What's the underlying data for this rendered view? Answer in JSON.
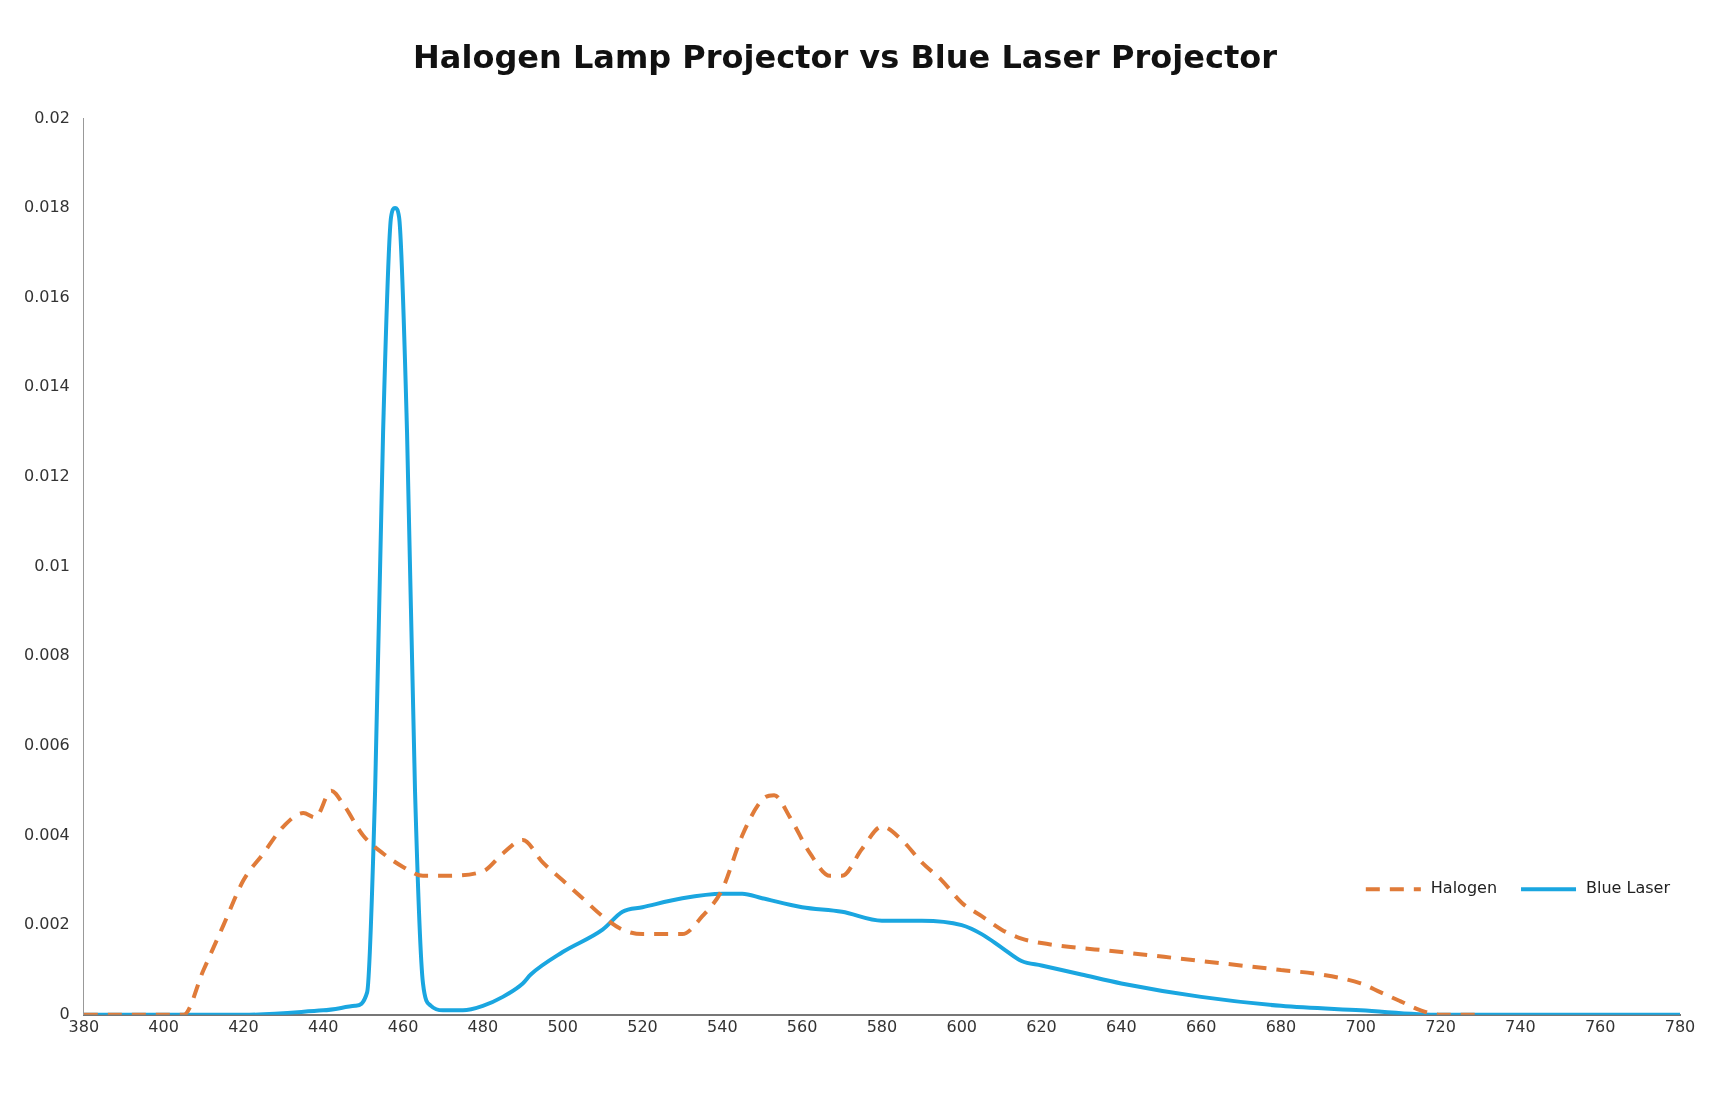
{
  "chart_data": {
    "type": "line",
    "title": "Halogen Lamp Projector vs Blue Laser Projector",
    "xlim": [
      380,
      780
    ],
    "xticks": [
      380,
      400,
      420,
      440,
      460,
      480,
      500,
      520,
      540,
      560,
      580,
      600,
      620,
      640,
      660,
      680,
      700,
      720,
      740,
      760,
      780
    ],
    "ylim": [
      0,
      0.02
    ],
    "yticks": [
      0,
      0.002,
      0.004,
      0.006,
      0.008,
      0.01,
      0.012,
      0.014,
      0.016,
      0.018,
      0.02
    ],
    "grid": false,
    "legend": "right",
    "marker": "none",
    "series": [
      {
        "name": "Halogen",
        "color": "#e07b39",
        "line_style": "dashed",
        "x": [
          380,
          390,
          400,
          405,
          410,
          415,
          420,
          425,
          430,
          435,
          438,
          442,
          445,
          450,
          455,
          460,
          465,
          470,
          480,
          485,
          490,
          495,
          500,
          505,
          510,
          515,
          520,
          530,
          535,
          540,
          545,
          550,
          553,
          557,
          562,
          567,
          570,
          575,
          580,
          585,
          590,
          595,
          600,
          605,
          610,
          615,
          620,
          640,
          660,
          680,
          690,
          700,
          705,
          710,
          715,
          720,
          730
        ],
        "values": [
          0,
          0,
          0,
          0,
          0.001,
          0.002,
          0.003,
          0.0036,
          0.0042,
          0.0045,
          0.0044,
          0.005,
          0.0047,
          0.004,
          0.0036,
          0.0033,
          0.0031,
          0.0031,
          0.0032,
          0.0036,
          0.0039,
          0.0034,
          0.003,
          0.0026,
          0.0022,
          0.0019,
          0.0018,
          0.0018,
          0.0022,
          0.0028,
          0.004,
          0.0048,
          0.0049,
          0.0044,
          0.0036,
          0.0031,
          0.0031,
          0.0037,
          0.0042,
          0.0039,
          0.0034,
          0.003,
          0.0025,
          0.0022,
          0.0019,
          0.0017,
          0.0016,
          0.0014,
          0.0012,
          0.001,
          0.0009,
          0.0007,
          0.0005,
          0.0003,
          0.0001,
          0,
          0
        ]
      },
      {
        "name": "Blue Laser",
        "color": "#1aa6e0",
        "line_style": "solid",
        "x": [
          380,
          400,
          420,
          440,
          448,
          451,
          453,
          455,
          457,
          458,
          459,
          461,
          463,
          465,
          467,
          470,
          475,
          480,
          485,
          490,
          492,
          500,
          510,
          515,
          520,
          530,
          540,
          545,
          550,
          560,
          570,
          580,
          590,
          600,
          605,
          610,
          615,
          620,
          630,
          640,
          660,
          680,
          700,
          720,
          780
        ],
        "values": [
          0,
          0,
          0,
          0.0001,
          0.0002,
          0.0005,
          0.005,
          0.013,
          0.0178,
          0.018,
          0.0178,
          0.013,
          0.005,
          0.0007,
          0.0002,
          0.0001,
          0.0001,
          0.0002,
          0.0004,
          0.0007,
          0.0009,
          0.0014,
          0.0019,
          0.0023,
          0.0024,
          0.0026,
          0.0027,
          0.0027,
          0.0026,
          0.0024,
          0.0023,
          0.0021,
          0.0021,
          0.002,
          0.0018,
          0.0015,
          0.0012,
          0.0011,
          0.0009,
          0.0007,
          0.0004,
          0.0002,
          0.0001,
          0,
          0
        ]
      }
    ]
  }
}
